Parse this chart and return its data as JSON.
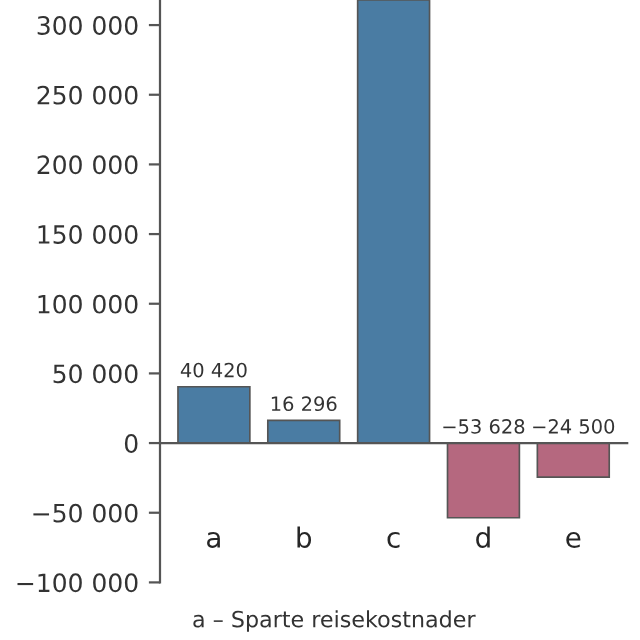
{
  "chart_data": {
    "type": "bar",
    "categories": [
      "a",
      "b",
      "c",
      "d",
      "e"
    ],
    "values": [
      40420,
      16296,
      318000,
      -53628,
      -24500
    ],
    "value_labels": [
      "40 420",
      "16 296",
      null,
      "−53 628",
      "−24 500"
    ],
    "colors": [
      "#4a7ca3",
      "#4a7ca3",
      "#4a7ca3",
      "#b5687f",
      "#b5687f"
    ],
    "ylim": [
      -100000,
      318000
    ],
    "yticks": [
      {
        "value": -100000,
        "label": "−100 000"
      },
      {
        "value": -50000,
        "label": "−50 000"
      },
      0,
      {
        "value": 50000,
        "label": "50 000"
      },
      {
        "value": 100000,
        "label": "100 000"
      },
      {
        "value": 150000,
        "label": "150 000"
      },
      {
        "value": 200000,
        "label": "200 000"
      },
      {
        "value": 250000,
        "label": "250 000"
      },
      {
        "value": 300000,
        "label": "300 000"
      }
    ],
    "annotations": [
      "a – Sparte reisekostnader"
    ]
  }
}
